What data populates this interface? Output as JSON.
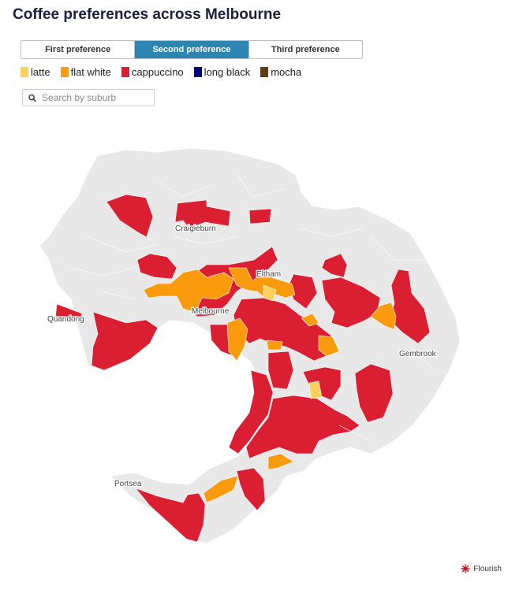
{
  "title": "Coffee preferences across Melbourne",
  "tabs": [
    {
      "label": "First preference",
      "active": false
    },
    {
      "label": "Second preference",
      "active": true
    },
    {
      "label": "Third preference",
      "active": false
    }
  ],
  "legend": [
    {
      "label": "latte",
      "color": "#fbd15e"
    },
    {
      "label": "flat white",
      "color": "#f99b0c"
    },
    {
      "label": "cappuccino",
      "color": "#db1f33"
    },
    {
      "label": "long black",
      "color": "#000073"
    },
    {
      "label": "mocha",
      "color": "#653c17"
    }
  ],
  "search": {
    "placeholder": "Search by suburb",
    "icon": "search-icon"
  },
  "map": {
    "base_color": "#e8e8e8",
    "places": {
      "craigieburn": "Craigieburn",
      "eltham": "Eltham",
      "melbourne": "Melbourne",
      "quandong": "Quandong",
      "gembrook": "Gembrook",
      "portsea": "Portsea"
    }
  },
  "credit": {
    "label": "Flourish",
    "icon": "flourish-logo-icon"
  }
}
